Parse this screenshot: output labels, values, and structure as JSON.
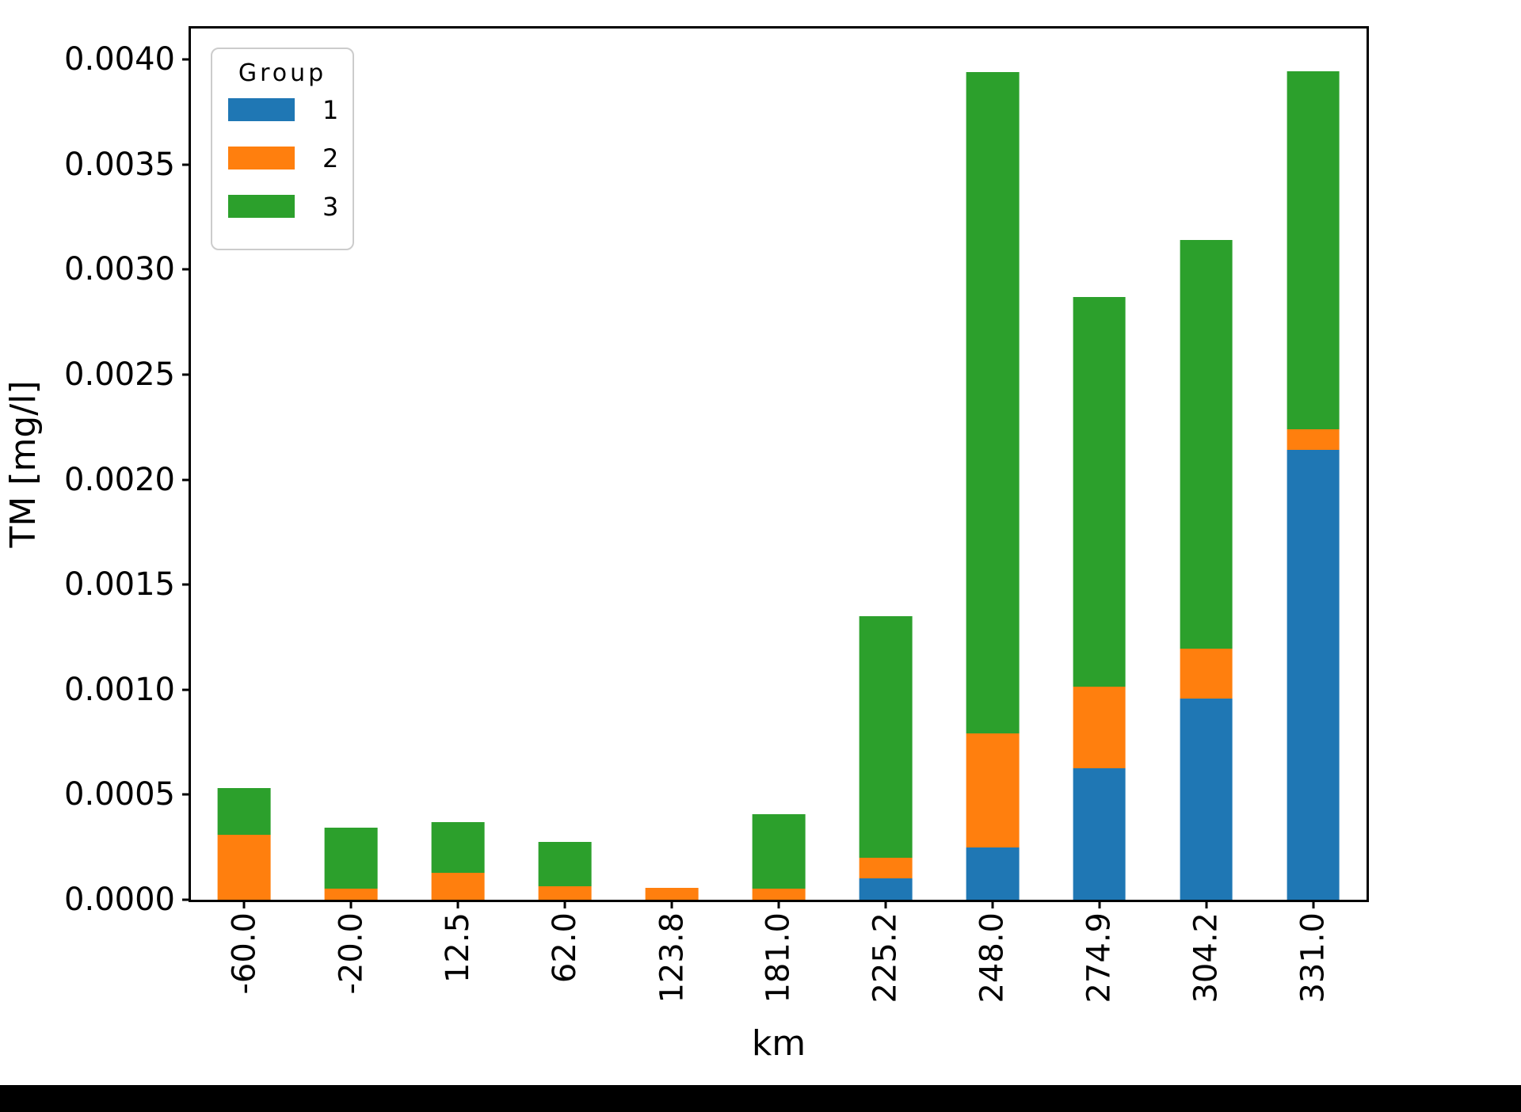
{
  "window": {
    "background": "#ffffff",
    "bottom_bar_color": "#000000"
  },
  "chart_data": {
    "type": "bar",
    "stacked": true,
    "title": "",
    "xlabel": "km",
    "ylabel": "TM [mg/l]",
    "categories": [
      "-60.0",
      "-20.0",
      "12.5",
      "62.0",
      "123.8",
      "181.0",
      "225.2",
      "248.0",
      "274.9",
      "304.2",
      "331.0"
    ],
    "series": [
      {
        "name": "1",
        "color": "#1f77b4",
        "values": [
          0,
          0,
          0,
          0,
          0,
          0,
          0.0001,
          0.000249,
          0.000625,
          0.000959,
          0.002142
        ]
      },
      {
        "name": "2",
        "color": "#ff7f0e",
        "values": [
          0.000311,
          5.4e-05,
          0.000128,
          6.6e-05,
          5.6e-05,
          5.3e-05,
          0.0001,
          0.000544,
          0.000388,
          0.000236,
          9.8e-05
        ]
      },
      {
        "name": "3",
        "color": "#2ca02c",
        "values": [
          0.000219,
          0.000288,
          0.000241,
          0.000208,
          0,
          0.000356,
          0.00115,
          0.003148,
          0.001856,
          0.001945,
          0.001705
        ]
      }
    ],
    "totals": [
      0.00053,
      0.000342,
      0.000369,
      0.000274,
      5.6e-05,
      0.000409,
      0.00135,
      0.003941,
      0.002869,
      0.00314,
      0.003945
    ],
    "ylim": [
      0,
      0.004148
    ],
    "yticks": [
      "0.0000",
      "0.0005",
      "0.0010",
      "0.0015",
      "0.0020",
      "0.0025",
      "0.0030",
      "0.0035",
      "0.0040"
    ],
    "ytick_values": [
      0,
      0.0005,
      0.001,
      0.0015,
      0.002,
      0.0025,
      0.003,
      0.0035,
      0.004
    ],
    "bar_width_fraction": 0.495,
    "x_tick_rotation": 90,
    "grid": false,
    "legend": {
      "title": "Group",
      "position": "upper left",
      "entries": [
        "1",
        "2",
        "3"
      ]
    },
    "axis_color": "#000000"
  }
}
